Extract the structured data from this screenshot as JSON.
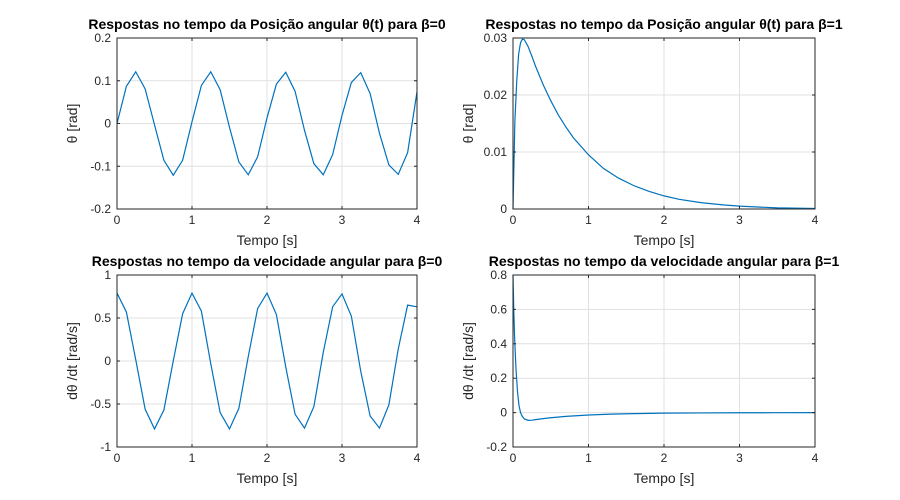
{
  "chart_data": [
    {
      "type": "line",
      "title": "Respostas no tempo da Posição angular θ(t) para β=0",
      "xlabel": "Tempo [s]",
      "ylabel": "θ  [rad]",
      "xlim": [
        0,
        4
      ],
      "ylim": [
        -0.2,
        0.2
      ],
      "xticks": [
        "0",
        "1",
        "2",
        "3",
        "4"
      ],
      "yticks": [
        "-0.2",
        "-0.1",
        "0",
        "0.1",
        "0.2"
      ],
      "grid": true,
      "color": "#0072bd",
      "series": [
        {
          "x": [
            0,
            0.125,
            0.25,
            0.375,
            0.5,
            0.625,
            0.75,
            0.875,
            1.0,
            1.125,
            1.25,
            1.375,
            1.5,
            1.625,
            1.75,
            1.875,
            2.0,
            2.125,
            2.25,
            2.375,
            2.5,
            2.625,
            2.75,
            2.875,
            3.0,
            3.125,
            3.25,
            3.375,
            3.5,
            3.625,
            3.75,
            3.875,
            4.0
          ],
          "values": [
            0,
            0.087,
            0.121,
            0.081,
            -0.003,
            -0.086,
            -0.121,
            -0.086,
            0.004,
            0.089,
            0.121,
            0.079,
            -0.009,
            -0.09,
            -0.12,
            -0.078,
            0.013,
            0.092,
            0.12,
            0.075,
            -0.016,
            -0.094,
            -0.12,
            -0.073,
            0.019,
            0.096,
            0.119,
            0.07,
            -0.023,
            -0.097,
            -0.119,
            -0.068,
            0.074
          ]
        }
      ]
    },
    {
      "type": "line",
      "title": "Respostas no tempo da Posição angular θ(t) para β=1",
      "xlabel": "Tempo [s]",
      "ylabel": "θ  [rad]",
      "xlim": [
        0,
        4
      ],
      "ylim": [
        0,
        0.03
      ],
      "xticks": [
        "0",
        "1",
        "2",
        "3",
        "4"
      ],
      "yticks": [
        "0",
        "0.01",
        "0.02",
        "0.03"
      ],
      "grid": true,
      "color": "#0072bd",
      "series": [
        {
          "x": [
            0,
            0.025,
            0.05,
            0.075,
            0.1,
            0.125,
            0.15,
            0.2,
            0.25,
            0.3,
            0.4,
            0.5,
            0.6,
            0.7,
            0.8,
            1.0,
            1.2,
            1.4,
            1.6,
            1.8,
            2.0,
            2.2,
            2.5,
            2.8,
            3.0,
            3.5,
            4.0
          ],
          "values": [
            0,
            0.0155,
            0.0225,
            0.0272,
            0.0292,
            0.0298,
            0.0297,
            0.0285,
            0.0268,
            0.025,
            0.0218,
            0.019,
            0.0165,
            0.0144,
            0.0125,
            0.0095,
            0.0071,
            0.0054,
            0.0041,
            0.0031,
            0.0023,
            0.0017,
            0.0011,
            0.0007,
            0.0005,
            0.0002,
            0.0001
          ]
        }
      ]
    },
    {
      "type": "line",
      "title": "Respostas no tempo da velocidade angular para β=0",
      "xlabel": "Tempo [s]",
      "ylabel": "dθ /dt  [rad/s]",
      "xlim": [
        0,
        4
      ],
      "ylim": [
        -1,
        1
      ],
      "xticks": [
        "0",
        "1",
        "2",
        "3",
        "4"
      ],
      "yticks": [
        "-1",
        "-0.5",
        "0",
        "0.5",
        "1"
      ],
      "grid": true,
      "color": "#0072bd",
      "series": [
        {
          "x": [
            0,
            0.125,
            0.25,
            0.375,
            0.5,
            0.625,
            0.75,
            0.875,
            1.0,
            1.125,
            1.25,
            1.375,
            1.5,
            1.625,
            1.75,
            1.875,
            2.0,
            2.125,
            2.25,
            2.375,
            2.5,
            2.625,
            2.75,
            2.875,
            3.0,
            3.125,
            3.25,
            3.375,
            3.5,
            3.625,
            3.75,
            3.875,
            4.0
          ],
          "values": [
            0.79,
            0.57,
            0.015,
            -0.56,
            -0.79,
            -0.57,
            0.0,
            0.55,
            0.79,
            0.58,
            -0.03,
            -0.6,
            -0.79,
            -0.55,
            0.05,
            0.61,
            0.79,
            0.54,
            -0.07,
            -0.62,
            -0.78,
            -0.53,
            0.1,
            0.63,
            0.78,
            0.52,
            -0.12,
            -0.64,
            -0.78,
            -0.51,
            0.14,
            0.65,
            0.63
          ]
        }
      ]
    },
    {
      "type": "line",
      "title": "Respostas no tempo da velocidade angular para β=1",
      "xlabel": "Tempo [s]",
      "ylabel": "dθ /dt  [rad/s]",
      "xlim": [
        0,
        4
      ],
      "ylim": [
        -0.2,
        0.8
      ],
      "xticks": [
        "0",
        "1",
        "2",
        "3",
        "4"
      ],
      "yticks": [
        "-0.2",
        "0",
        "0.2",
        "0.4",
        "0.6",
        "0.8"
      ],
      "grid": true,
      "color": "#0072bd",
      "series": [
        {
          "x": [
            0,
            0.01,
            0.02,
            0.04,
            0.06,
            0.08,
            0.1,
            0.12,
            0.15,
            0.2,
            0.25,
            0.3,
            0.4,
            0.5,
            0.7,
            1.0,
            1.3,
            1.6,
            2.0,
            2.5,
            3.0,
            3.5,
            4.0
          ],
          "values": [
            0.8,
            0.6,
            0.45,
            0.25,
            0.12,
            0.04,
            0.0,
            -0.02,
            -0.037,
            -0.045,
            -0.044,
            -0.041,
            -0.035,
            -0.03,
            -0.022,
            -0.014,
            -0.009,
            -0.006,
            -0.003,
            -0.002,
            -0.001,
            -0.0005,
            0.0
          ]
        }
      ]
    }
  ]
}
